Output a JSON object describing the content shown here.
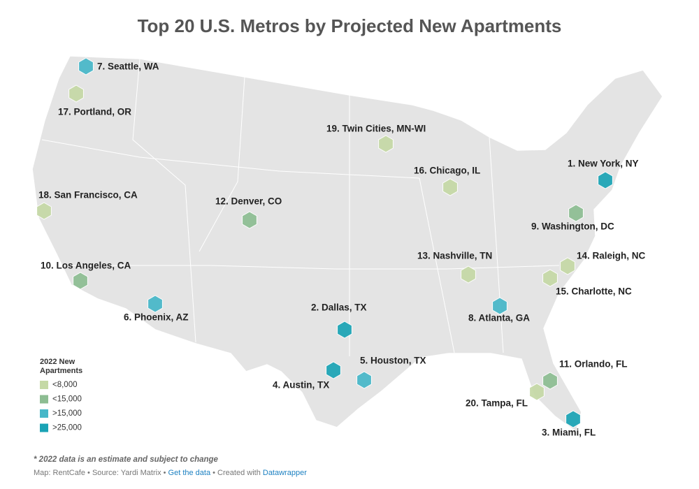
{
  "header": {
    "title": "Top 20 U.S. Metros by Projected New Apartments"
  },
  "metros": [
    {
      "label": "1. New York, NY",
      "color": "#1aa3b5"
    },
    {
      "label": "2. Dallas, TX",
      "color": "#1aa3b5"
    },
    {
      "label": "3. Miami, FL",
      "color": "#1aa3b5"
    },
    {
      "label": "4. Austin, TX",
      "color": "#1aa3b5"
    },
    {
      "label": "5. Houston, TX",
      "color": "#46b7c8"
    },
    {
      "label": "6. Phoenix, AZ",
      "color": "#46b7c8"
    },
    {
      "label": "7. Seattle, WA",
      "color": "#46b7c8"
    },
    {
      "label": "8. Atlanta, GA",
      "color": "#46b7c8"
    },
    {
      "label": "9. Washington, DC",
      "color": "#8dbd92"
    },
    {
      "label": "10. Los Angeles, CA",
      "color": "#8dbd92"
    },
    {
      "label": "11. Orlando, FL",
      "color": "#8dbd92"
    },
    {
      "label": "12. Denver, CO",
      "color": "#8dbd92"
    },
    {
      "label": "13. Nashville, TN",
      "color": "#c5d9a6"
    },
    {
      "label": "14. Raleigh, NC",
      "color": "#c5d9a6"
    },
    {
      "label": "15. Charlotte, NC",
      "color": "#c5d9a6"
    },
    {
      "label": "16. Chicago, IL",
      "color": "#c5d9a6"
    },
    {
      "label": "17. Portland, OR",
      "color": "#c5d9a6"
    },
    {
      "label": "18. San Francisco, CA",
      "color": "#c5d9a6"
    },
    {
      "label": "19. Twin Cities, MN-WI",
      "color": "#c5d9a6"
    },
    {
      "label": "20. Tampa, FL",
      "color": "#c5d9a6"
    }
  ],
  "legend": {
    "title": [
      "2022 New",
      "Apartments"
    ],
    "items": [
      {
        "label": "<8,000",
        "color": "#c5d9a6"
      },
      {
        "label": "<15,000",
        "color": "#8dbd92"
      },
      {
        "label": ">15,000",
        "color": "#46b7c8"
      },
      {
        "label": ">25,000",
        "color": "#1aa3b5"
      }
    ]
  },
  "footer": {
    "note": "* 2022 data is an estimate and subject to change",
    "source": [
      "Map: RentCafe • Source: Yardi Matrix • ",
      "Get the data",
      " • Created with ",
      "Datawrapper"
    ]
  }
}
